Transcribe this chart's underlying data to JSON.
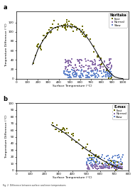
{
  "title_a": "Noritake",
  "title_b": "E.max",
  "xlabel": "Surface Temperature (°C)",
  "ylabel": "Temperature Difference (°C)",
  "label_a": "a",
  "label_b": "b",
  "legend_a": [
    "Fast",
    "Normal",
    "Slow"
  ],
  "legend_b": [
    "Fast",
    "Normal",
    "Slow"
  ],
  "colors": {
    "fast": "#6B6B00",
    "normal": "#8B6FAA",
    "slow": "#6688CC"
  },
  "background": "#ffffff",
  "panel_a": {
    "xlim": [
      0,
      1050
    ],
    "ylim": [
      0,
      143
    ],
    "yticks": [
      0,
      20,
      40,
      60,
      80,
      100,
      120
    ],
    "xticks": [
      0,
      100,
      200,
      300,
      400,
      500,
      600,
      700,
      800,
      900,
      1000
    ],
    "curve_x": [
      150,
      200,
      250,
      300,
      350,
      400,
      440,
      480,
      510,
      550,
      590,
      630,
      680,
      730,
      780,
      830,
      880,
      920,
      960,
      1000
    ],
    "curve_y": [
      30,
      62,
      82,
      98,
      108,
      112,
      113,
      113,
      112,
      110,
      105,
      97,
      83,
      65,
      45,
      26,
      12,
      4,
      1,
      0
    ]
  },
  "panel_b": {
    "xlim": [
      0,
      800
    ],
    "ylim": [
      0,
      100
    ],
    "yticks": [
      0,
      10,
      20,
      30,
      40,
      50,
      60,
      70,
      80,
      90,
      100
    ],
    "xticks": [
      0,
      100,
      200,
      300,
      400,
      500,
      600,
      700,
      800
    ],
    "curve_x": [
      250,
      300,
      350,
      400,
      450,
      500,
      550,
      600,
      650,
      700,
      750
    ],
    "curve_y": [
      68,
      62,
      55,
      47,
      39,
      31,
      24,
      17,
      11,
      6,
      2
    ]
  }
}
